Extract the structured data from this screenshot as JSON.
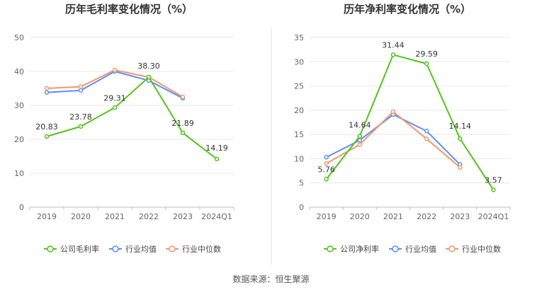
{
  "source": "数据来源：恒生聚源",
  "colors": {
    "company": "#52c41a",
    "avg": "#5b8ff9",
    "median": "#f4976c",
    "grid": "#e8e8e8",
    "axis": "#bbbbbb",
    "divider": "#e0e0e0"
  },
  "chart_data": [
    {
      "type": "line",
      "title": "历年毛利率变化情况（%）",
      "categories": [
        "2019",
        "2020",
        "2021",
        "2022",
        "2023",
        "2024Q1"
      ],
      "ylim": [
        0,
        50
      ],
      "yticks": [
        "0",
        "10",
        "20",
        "30",
        "40",
        "50"
      ],
      "legend_position": "bottom",
      "series": [
        {
          "name": "公司毛利率",
          "color_key": "company",
          "values": [
            20.83,
            23.78,
            29.31,
            38.3,
            21.89,
            14.19
          ],
          "labels": [
            "20.83",
            "23.78",
            "29.31",
            "38.30",
            "21.89",
            "14.19"
          ]
        },
        {
          "name": "行业均值",
          "color_key": "avg",
          "values": [
            33.8,
            34.4,
            40.0,
            37.3,
            32.1,
            null
          ]
        },
        {
          "name": "行业中位数",
          "color_key": "median",
          "values": [
            35.0,
            35.5,
            40.4,
            38.3,
            32.5,
            null
          ]
        }
      ]
    },
    {
      "type": "line",
      "title": "历年净利率变化情况（%）",
      "categories": [
        "2019",
        "2020",
        "2021",
        "2022",
        "2023",
        "2024Q1"
      ],
      "ylim": [
        0,
        35
      ],
      "yticks": [
        "0",
        "5",
        "10",
        "15",
        "20",
        "25",
        "30",
        "35"
      ],
      "legend_position": "bottom",
      "series": [
        {
          "name": "公司净利率",
          "color_key": "company",
          "values": [
            5.76,
            14.64,
            31.44,
            29.59,
            14.14,
            3.57
          ],
          "labels": [
            "5.76",
            "14.64",
            "31.44",
            "29.59",
            "14.14",
            "3.57"
          ]
        },
        {
          "name": "行业均值",
          "color_key": "avg",
          "values": [
            10.3,
            13.8,
            19.1,
            15.7,
            8.8,
            null
          ]
        },
        {
          "name": "行业中位数",
          "color_key": "median",
          "values": [
            9.0,
            12.9,
            19.7,
            14.1,
            8.2,
            null
          ]
        }
      ]
    }
  ]
}
